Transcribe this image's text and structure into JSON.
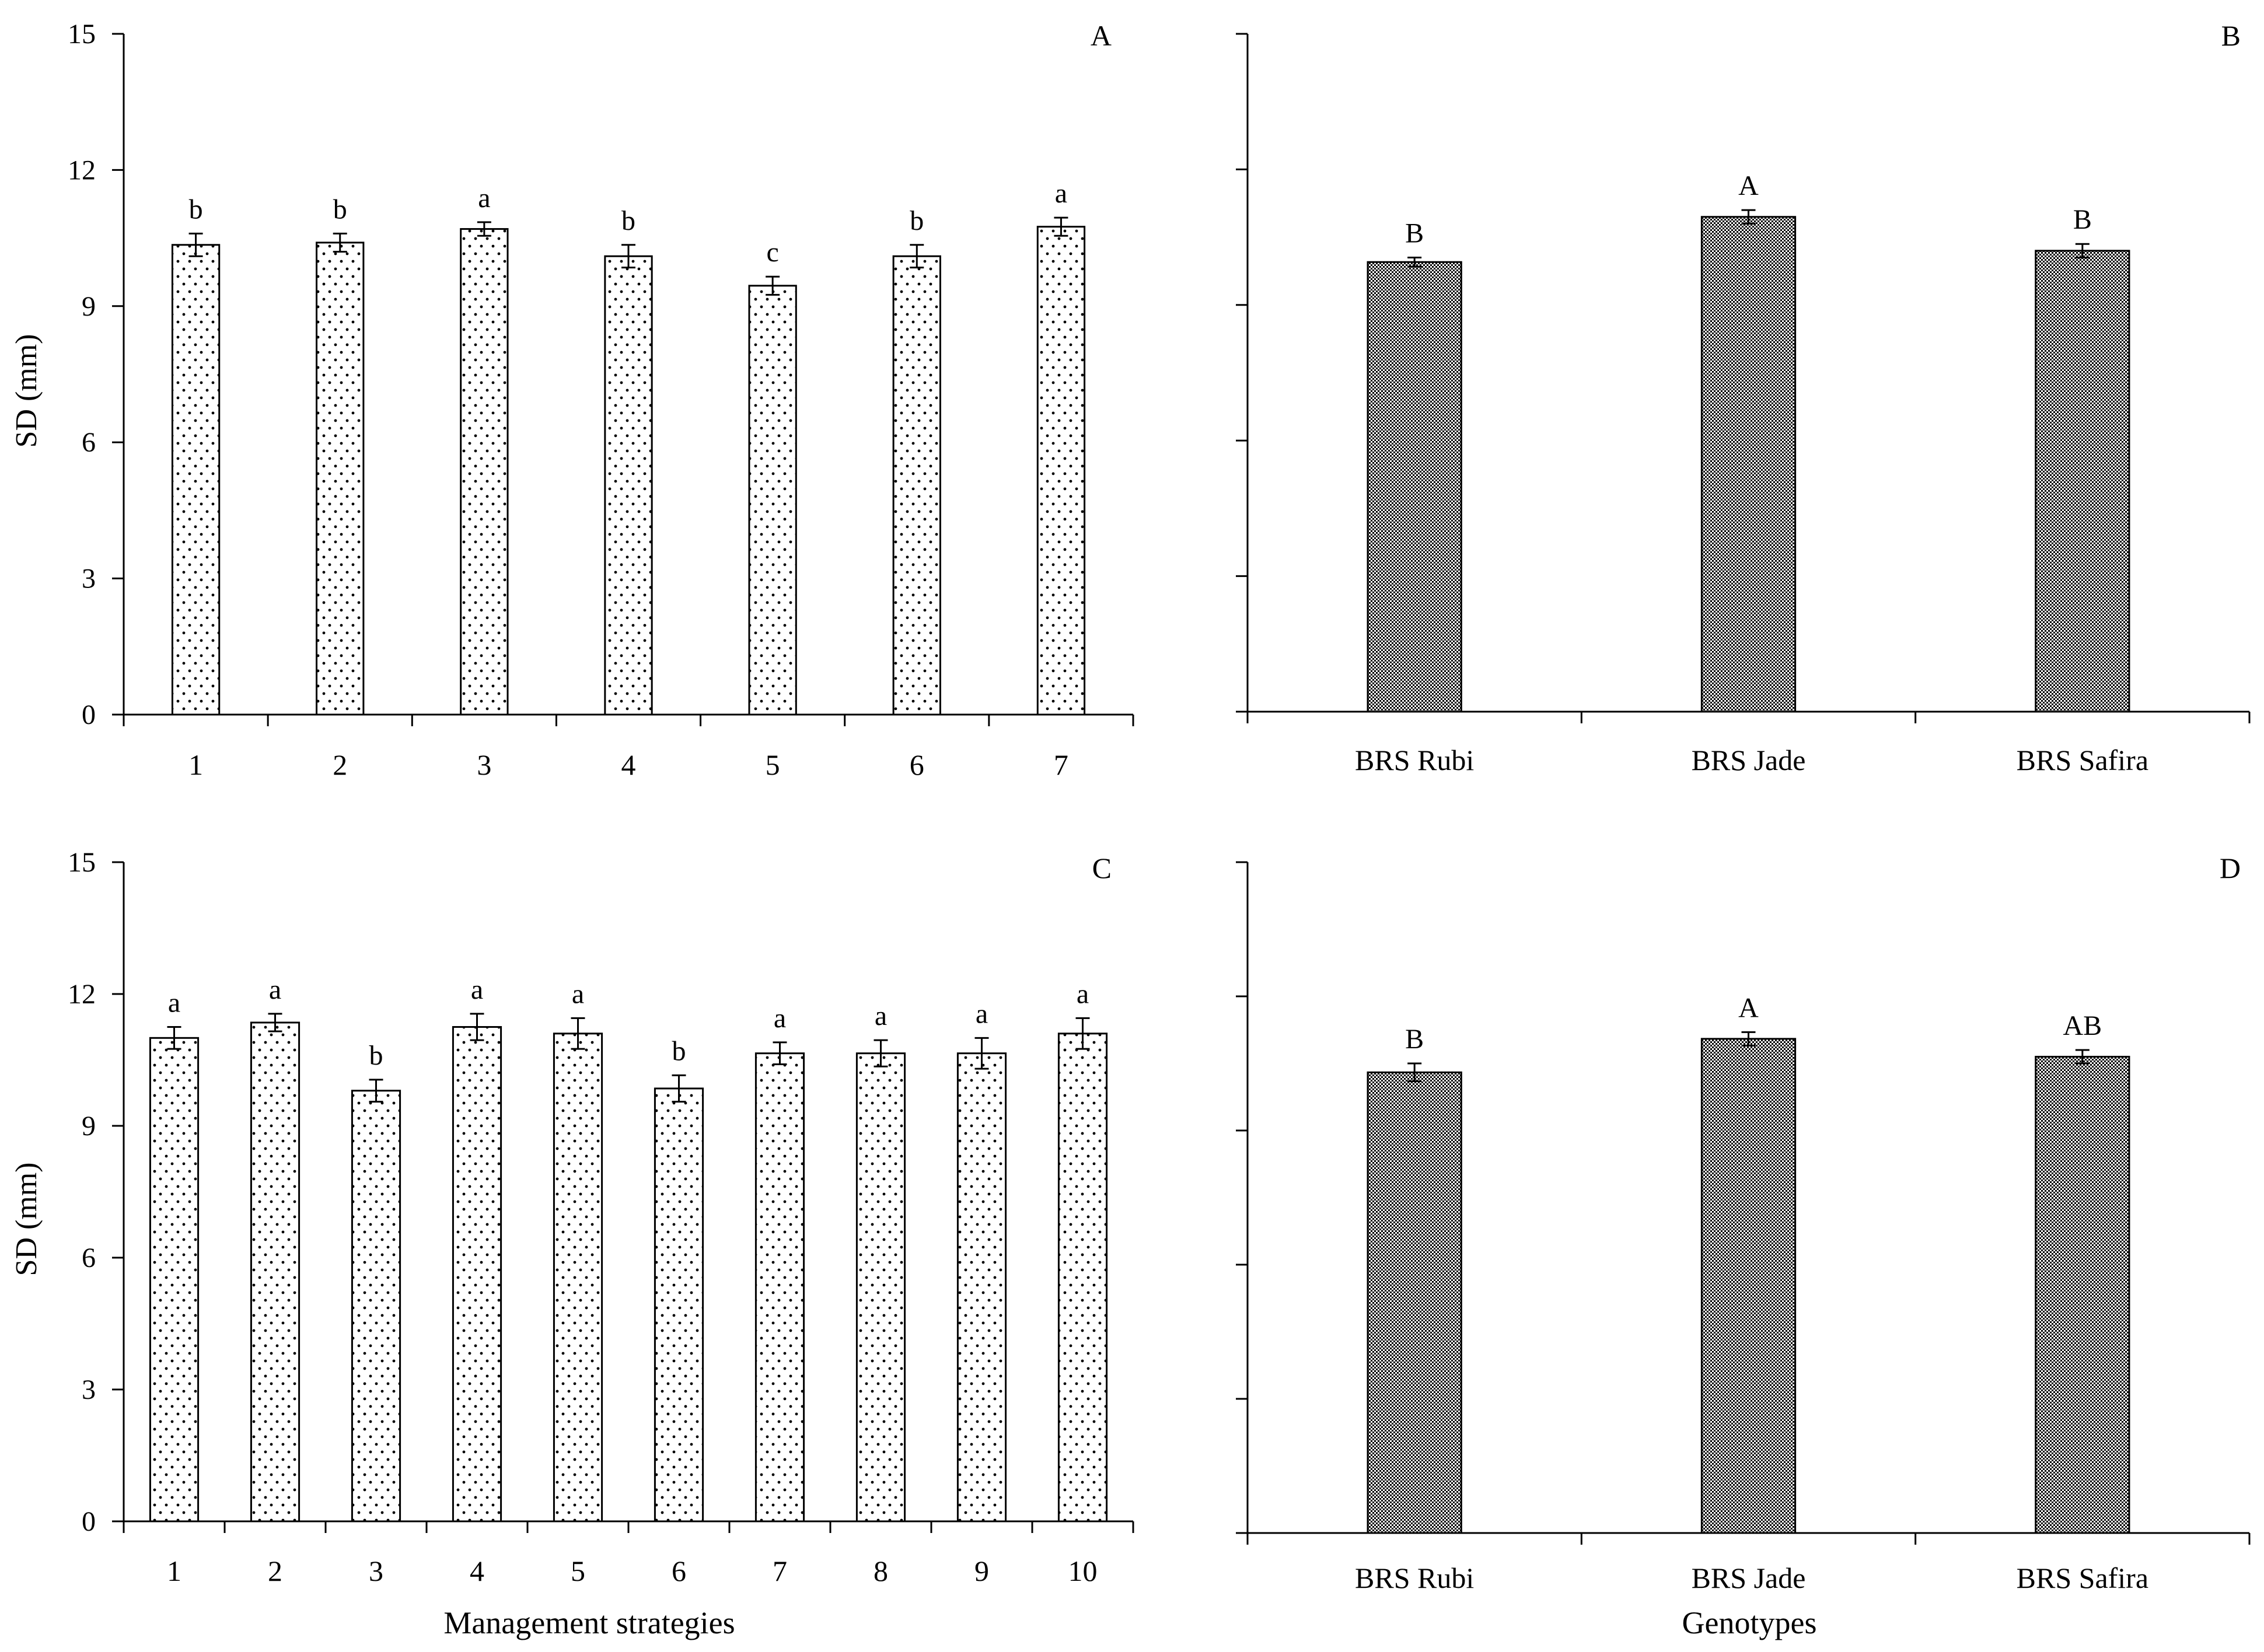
{
  "chart_data": [
    {
      "panel": "A",
      "type": "bar",
      "title": "",
      "ylabel": "SD (mm)",
      "xlabel": "",
      "ylim": [
        0,
        15
      ],
      "yticks": [
        0,
        3,
        6,
        9,
        12,
        15
      ],
      "show_ytick_labels": true,
      "categories": [
        "1",
        "2",
        "3",
        "4",
        "5",
        "6",
        "7"
      ],
      "values": [
        10.35,
        10.4,
        10.7,
        10.1,
        9.45,
        10.1,
        10.75
      ],
      "errors": [
        0.25,
        0.2,
        0.15,
        0.25,
        0.2,
        0.25,
        0.2
      ],
      "letters": [
        "b",
        "b",
        "a",
        "b",
        "c",
        "b",
        "a"
      ],
      "pattern": "dots"
    },
    {
      "panel": "B",
      "type": "bar",
      "title": "",
      "ylabel": "",
      "xlabel": "",
      "ylim": [
        0,
        15
      ],
      "yticks": [
        0,
        3,
        6,
        9,
        12,
        15
      ],
      "show_ytick_labels": false,
      "categories": [
        "BRS Rubi",
        "BRS Jade",
        "BRS Safira"
      ],
      "values": [
        9.95,
        10.95,
        10.2
      ],
      "errors": [
        0.1,
        0.15,
        0.15
      ],
      "letters": [
        "B",
        "A",
        "B"
      ],
      "pattern": "checker"
    },
    {
      "panel": "C",
      "type": "bar",
      "title": "",
      "ylabel": "SD (mm)",
      "xlabel": "Management strategies",
      "ylim": [
        0,
        15
      ],
      "yticks": [
        0,
        3,
        6,
        9,
        12,
        15
      ],
      "show_ytick_labels": true,
      "categories": [
        "1",
        "2",
        "3",
        "4",
        "5",
        "6",
        "7",
        "8",
        "9",
        "10"
      ],
      "values": [
        11.0,
        11.35,
        9.8,
        11.25,
        11.1,
        9.85,
        10.65,
        10.65,
        10.65,
        11.1
      ],
      "errors": [
        0.25,
        0.2,
        0.25,
        0.3,
        0.35,
        0.3,
        0.25,
        0.3,
        0.35,
        0.35
      ],
      "letters": [
        "a",
        "a",
        "b",
        "a",
        "a",
        "b",
        "a",
        "a",
        "a",
        "a"
      ],
      "pattern": "dots"
    },
    {
      "panel": "D",
      "type": "bar",
      "title": "",
      "ylabel": "",
      "xlabel": "Genotypes",
      "ylim": [
        0,
        15
      ],
      "yticks": [
        0,
        3,
        6,
        9,
        12,
        15
      ],
      "show_ytick_labels": false,
      "categories": [
        "BRS Rubi",
        "BRS Jade",
        "BRS Safira"
      ],
      "values": [
        10.3,
        11.05,
        10.65
      ],
      "errors": [
        0.2,
        0.15,
        0.15
      ],
      "letters": [
        "B",
        "A",
        "AB"
      ],
      "pattern": "checker"
    }
  ]
}
